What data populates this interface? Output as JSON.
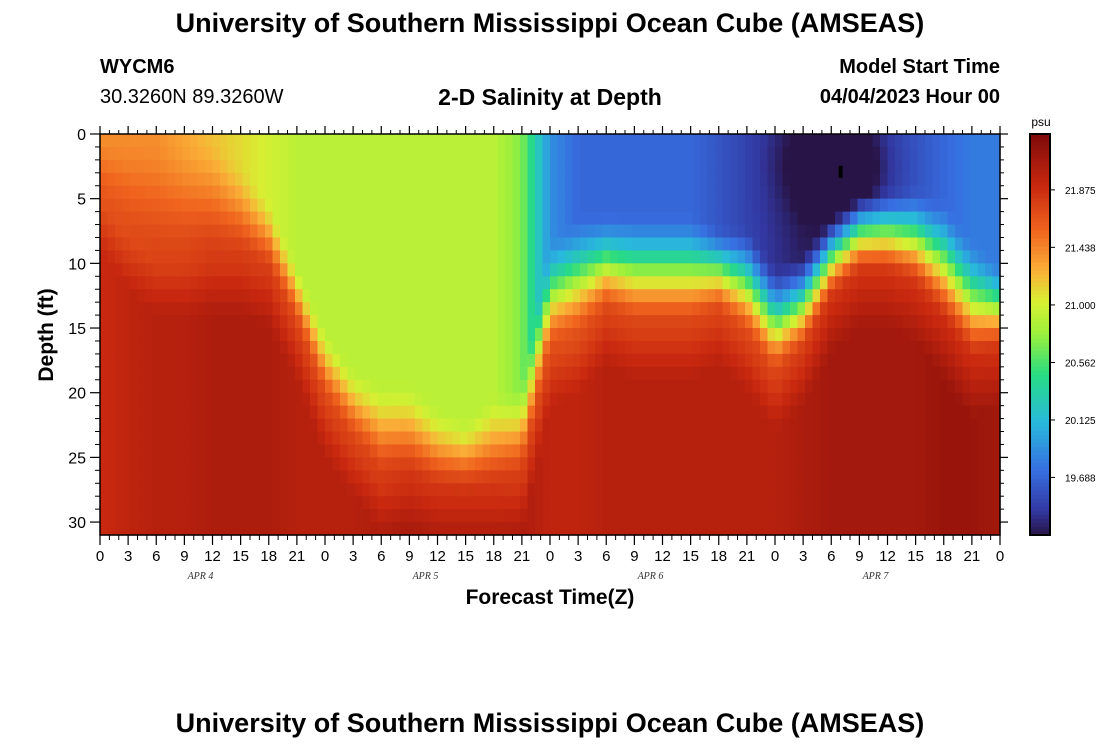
{
  "header": {
    "title": "University of Southern Mississippi Ocean Cube (AMSEAS)",
    "station_id": "WYCM6",
    "station_coords": "30.3260N  89.3260W",
    "plot_title": "2-D Salinity at Depth",
    "start_label": "Model Start Time",
    "start_value": "04/04/2023 Hour 00"
  },
  "footer": {
    "title": "University of Southern Mississippi Ocean Cube (AMSEAS)"
  },
  "chart_data": {
    "type": "heatmap",
    "title": "2-D Salinity at Depth",
    "xlabel": "Forecast Time(Z)",
    "ylabel": "Depth (ft)",
    "x_tick_labels": [
      "0",
      "3",
      "6",
      "9",
      "12",
      "15",
      "18",
      "21",
      "0",
      "3",
      "6",
      "9",
      "12",
      "15",
      "18",
      "21",
      "0",
      "3",
      "6",
      "9",
      "12",
      "15",
      "18",
      "21",
      "0",
      "3",
      "6",
      "9",
      "12",
      "15",
      "18",
      "21",
      "0"
    ],
    "day_labels": [
      "APR 4",
      "APR 5",
      "APR 6",
      "APR 7"
    ],
    "xlim_hours": [
      0,
      96
    ],
    "y_ticks": [
      0,
      5,
      10,
      15,
      20,
      25,
      30
    ],
    "ylim": [
      0,
      31
    ],
    "colorbar": {
      "unit": "psu",
      "tick_labels": [
        "21.875",
        "21.438",
        "21.000",
        "20.562",
        "20.125",
        "19.688"
      ],
      "ticks": [
        21.875,
        21.438,
        21.0,
        20.562,
        20.125,
        19.688
      ],
      "range": [
        19.25,
        22.3
      ]
    },
    "values_note": "salinity (psu) at time index t (hours) and depth d (ft)",
    "time_hours": [
      0,
      3,
      6,
      9,
      12,
      15,
      18,
      21,
      24,
      27,
      30,
      33,
      36,
      39,
      42,
      45,
      48,
      51,
      54,
      57,
      60,
      63,
      66,
      69,
      72,
      75,
      78,
      81,
      84,
      87,
      90,
      93,
      96
    ],
    "layer_depth_ft": [
      0,
      5,
      10,
      15,
      20,
      25,
      30
    ],
    "upper_layer_depth_ft": [
      0,
      0,
      0,
      0,
      0,
      2,
      5,
      10,
      15,
      18,
      19,
      19,
      21,
      22,
      20,
      19,
      8,
      6,
      6,
      6,
      6,
      6,
      7,
      7,
      10,
      9,
      6,
      4,
      4,
      4,
      5,
      8,
      10
    ],
    "interface_depth_ft": [
      5,
      8,
      10,
      10,
      10,
      10,
      11,
      15,
      21,
      24,
      27,
      27,
      28,
      28,
      28,
      27,
      17,
      16,
      14,
      15,
      15,
      15,
      14,
      16,
      19,
      17,
      13,
      11,
      11,
      12,
      15,
      18,
      17
    ],
    "upper_salinity_psu": [
      21.4,
      21.4,
      21.4,
      21.3,
      21.2,
      21.1,
      21.0,
      20.9,
      20.9,
      20.9,
      20.9,
      20.9,
      20.9,
      20.9,
      20.9,
      20.7,
      19.9,
      19.7,
      19.7,
      19.7,
      19.7,
      19.7,
      19.6,
      19.5,
      19.4,
      19.3,
      19.3,
      19.3,
      19.5,
      19.6,
      19.7,
      19.8,
      19.8
    ],
    "deep_salinity_psu": [
      21.9,
      21.95,
      22.0,
      22.0,
      22.05,
      22.05,
      22.05,
      22.0,
      22.0,
      22.0,
      22.05,
      22.1,
      22.1,
      22.1,
      22.1,
      22.05,
      21.95,
      21.95,
      22.0,
      22.0,
      22.0,
      22.0,
      22.0,
      22.0,
      22.0,
      22.05,
      22.1,
      22.1,
      22.1,
      22.1,
      22.15,
      22.15,
      22.1
    ],
    "mid_layer_salinity_psu": [
      21.6,
      21.6,
      21.6,
      21.5,
      21.4,
      21.3,
      21.3,
      21.2,
      21.2,
      21.0,
      21.0,
      21.0,
      21.0,
      21.0,
      21.0,
      20.9,
      20.6,
      20.5,
      20.5,
      20.5,
      20.5,
      20.5,
      20.4,
      20.4,
      20.4,
      20.4,
      20.4,
      20.5,
      20.6,
      20.7,
      20.8,
      20.8,
      20.6
    ],
    "minimum_marker": {
      "time_hours": 79,
      "depth_ft": 3
    }
  }
}
